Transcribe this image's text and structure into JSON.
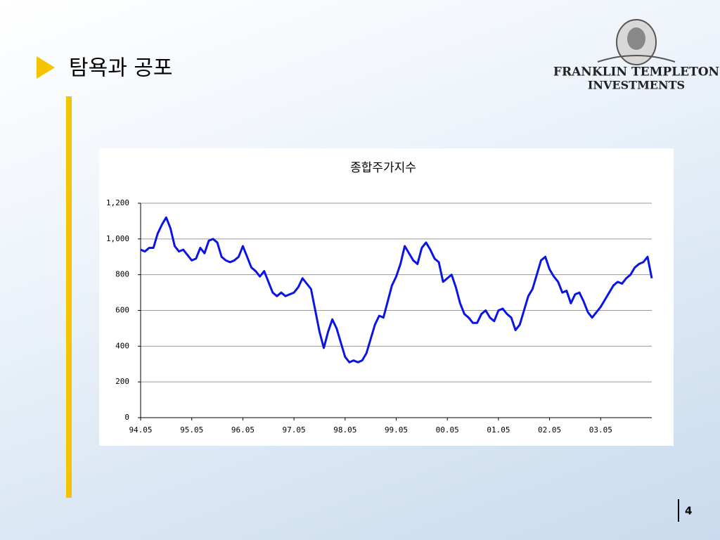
{
  "slide": {
    "title": "탐욕과 공포",
    "logo": {
      "line1": "FRANKLIN TEMPLETON",
      "line2": "INVESTMENTS"
    },
    "page_number": "4"
  },
  "chart_data": {
    "type": "line",
    "title": "종합주가지수",
    "categories": [
      "94.05",
      null,
      null,
      null,
      null,
      null,
      null,
      null,
      null,
      null,
      null,
      null,
      "95.05",
      null,
      null,
      null,
      null,
      null,
      null,
      null,
      null,
      null,
      null,
      null,
      "96.05",
      null,
      null,
      null,
      null,
      null,
      null,
      null,
      null,
      null,
      null,
      null,
      "97.05",
      null,
      null,
      null,
      null,
      null,
      null,
      null,
      null,
      null,
      null,
      null,
      "98.05",
      null,
      null,
      null,
      null,
      null,
      null,
      null,
      null,
      null,
      null,
      null,
      "99.05",
      null,
      null,
      null,
      null,
      null,
      null,
      null,
      null,
      null,
      null,
      null,
      "00.05",
      null,
      null,
      null,
      null,
      null,
      null,
      null,
      null,
      null,
      null,
      null,
      "01.05",
      null,
      null,
      null,
      null,
      null,
      null,
      null,
      null,
      null,
      null,
      null,
      "02.05",
      null,
      null,
      null,
      null,
      null,
      null,
      null,
      null,
      null,
      null,
      null,
      "03.05",
      null,
      null,
      null,
      null,
      null,
      null,
      null,
      null,
      null,
      null,
      null,
      null
    ],
    "series": [
      {
        "color": "#0a14e6",
        "values": [
          940,
          930,
          950,
          950,
          1030,
          1080,
          1120,
          1060,
          960,
          930,
          940,
          910,
          880,
          890,
          950,
          920,
          990,
          1000,
          980,
          900,
          880,
          870,
          880,
          900,
          960,
          900,
          840,
          820,
          790,
          820,
          760,
          700,
          680,
          700,
          680,
          690,
          700,
          730,
          780,
          750,
          720,
          600,
          480,
          390,
          480,
          550,
          500,
          420,
          340,
          310,
          320,
          310,
          320,
          360,
          440,
          520,
          570,
          560,
          650,
          740,
          790,
          860,
          960,
          920,
          880,
          860,
          950,
          980,
          940,
          890,
          870,
          760,
          780,
          800,
          730,
          640,
          580,
          560,
          530,
          530,
          580,
          600,
          560,
          540,
          600,
          610,
          580,
          560,
          490,
          520,
          600,
          680,
          720,
          800,
          880,
          900,
          830,
          790,
          760,
          700,
          710,
          640,
          690,
          700,
          650,
          590,
          560,
          590,
          620,
          660,
          700,
          740,
          760,
          750,
          780,
          800,
          840,
          860,
          870,
          900,
          780
        ]
      }
    ],
    "ylim": [
      0,
      1200
    ],
    "yticks": [
      0,
      200,
      400,
      600,
      800,
      {
        "value": 1000,
        "label": "1,000"
      },
      {
        "value": 1200,
        "label": "1,200"
      }
    ],
    "grid": true
  }
}
